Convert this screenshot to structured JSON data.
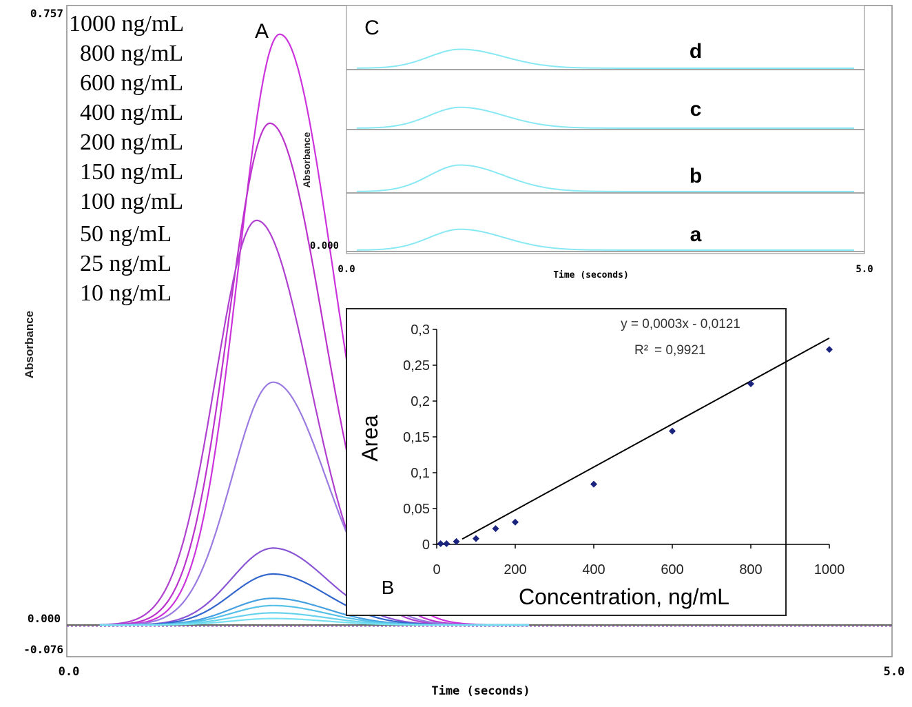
{
  "chart_data": [
    {
      "id": "A",
      "type": "line",
      "panel_label": "A",
      "xlabel": "Time (seconds)",
      "ylabel": "Absorbance",
      "xlim": [
        0.0,
        5.0
      ],
      "ylim": [
        -0.076,
        0.757
      ],
      "x_tick_labels": [
        "0.0",
        "5.0"
      ],
      "y_tick_labels": [
        "0.757",
        "0.000",
        "-0.076"
      ],
      "legend_entries": [
        "1000 ng/mL",
        "800 ng/mL",
        "600 ng/mL",
        "400 ng/mL",
        "200 ng/mL",
        "150 ng/mL",
        "100 ng/mL",
        "50 ng/mL",
        "25 ng/mL",
        "10 ng/mL"
      ],
      "series": [
        {
          "name": "1000 ng/mL",
          "peak_time": 1.29,
          "peak": 0.73,
          "color": "#cc33dd"
        },
        {
          "name": "800 ng/mL",
          "peak_time": 1.23,
          "peak": 0.62,
          "color": "#bb33cc"
        },
        {
          "name": "600 ng/mL",
          "peak_time": 1.15,
          "peak": 0.5,
          "color": "#b040d0"
        },
        {
          "name": "400 ng/mL",
          "peak_time": 1.25,
          "peak": 0.3,
          "color": "#9a7ae0"
        },
        {
          "name": "200 ng/mL",
          "peak_time": 1.25,
          "peak": 0.095,
          "color": "#8a55d5"
        },
        {
          "name": "150 ng/mL",
          "peak_time": 1.25,
          "peak": 0.063,
          "color": "#3366cc"
        },
        {
          "name": "100 ng/mL",
          "peak_time": 1.25,
          "peak": 0.033,
          "color": "#44a0e0"
        },
        {
          "name": "50 ng/mL",
          "peak_time": 1.25,
          "peak": 0.024,
          "color": "#55c0e8"
        },
        {
          "name": "25 ng/mL",
          "peak_time": 1.25,
          "peak": 0.015,
          "color": "#66d2ec"
        },
        {
          "name": "10 ng/mL",
          "peak_time": 1.25,
          "peak": 0.008,
          "color": "#77e0f0"
        }
      ]
    },
    {
      "id": "C",
      "type": "line",
      "panel_label": "C",
      "xlabel": "Time (seconds)",
      "ylabel": "Absorbance",
      "xlim": [
        0.0,
        5.0
      ],
      "x_tick_labels": [
        "0.0",
        "5.0"
      ],
      "y_tick_labels": [
        "0.000"
      ],
      "traces": [
        {
          "label": "d",
          "peak_time": 1.1,
          "relative_height": 0.5
        },
        {
          "label": "c",
          "peak_time": 1.1,
          "relative_height": 0.55
        },
        {
          "label": "b",
          "peak_time": 1.1,
          "relative_height": 0.7
        },
        {
          "label": "a",
          "peak_time": 1.1,
          "relative_height": 0.55
        }
      ],
      "color": "#88e8f4"
    },
    {
      "id": "B",
      "type": "scatter",
      "panel_label": "B",
      "xlabel": "Concentration, ng/mL",
      "ylabel": "Area",
      "xlim": [
        0,
        1000
      ],
      "ylim": [
        0,
        0.3
      ],
      "x_ticks": [
        "0",
        "200",
        "400",
        "600",
        "800",
        "1000"
      ],
      "y_ticks": [
        "0",
        "0,05",
        "0,1",
        "0,15",
        "0,2",
        "0,25",
        "0,3"
      ],
      "points": [
        {
          "x": 10,
          "y": 0.001
        },
        {
          "x": 25,
          "y": 0.001
        },
        {
          "x": 50,
          "y": 0.004
        },
        {
          "x": 100,
          "y": 0.008
        },
        {
          "x": 150,
          "y": 0.022
        },
        {
          "x": 200,
          "y": 0.031
        },
        {
          "x": 400,
          "y": 0.084
        },
        {
          "x": 600,
          "y": 0.158
        },
        {
          "x": 800,
          "y": 0.224
        },
        {
          "x": 1000,
          "y": 0.272
        }
      ],
      "fit": {
        "slope": 0.0003,
        "intercept": -0.0121,
        "x_range": [
          65,
          1000
        ]
      },
      "equation": "y = 0,0003x - 0,0121",
      "r2_label": "R²",
      "r2_value": "= 0,9921",
      "marker_color": "#1a237e"
    }
  ]
}
